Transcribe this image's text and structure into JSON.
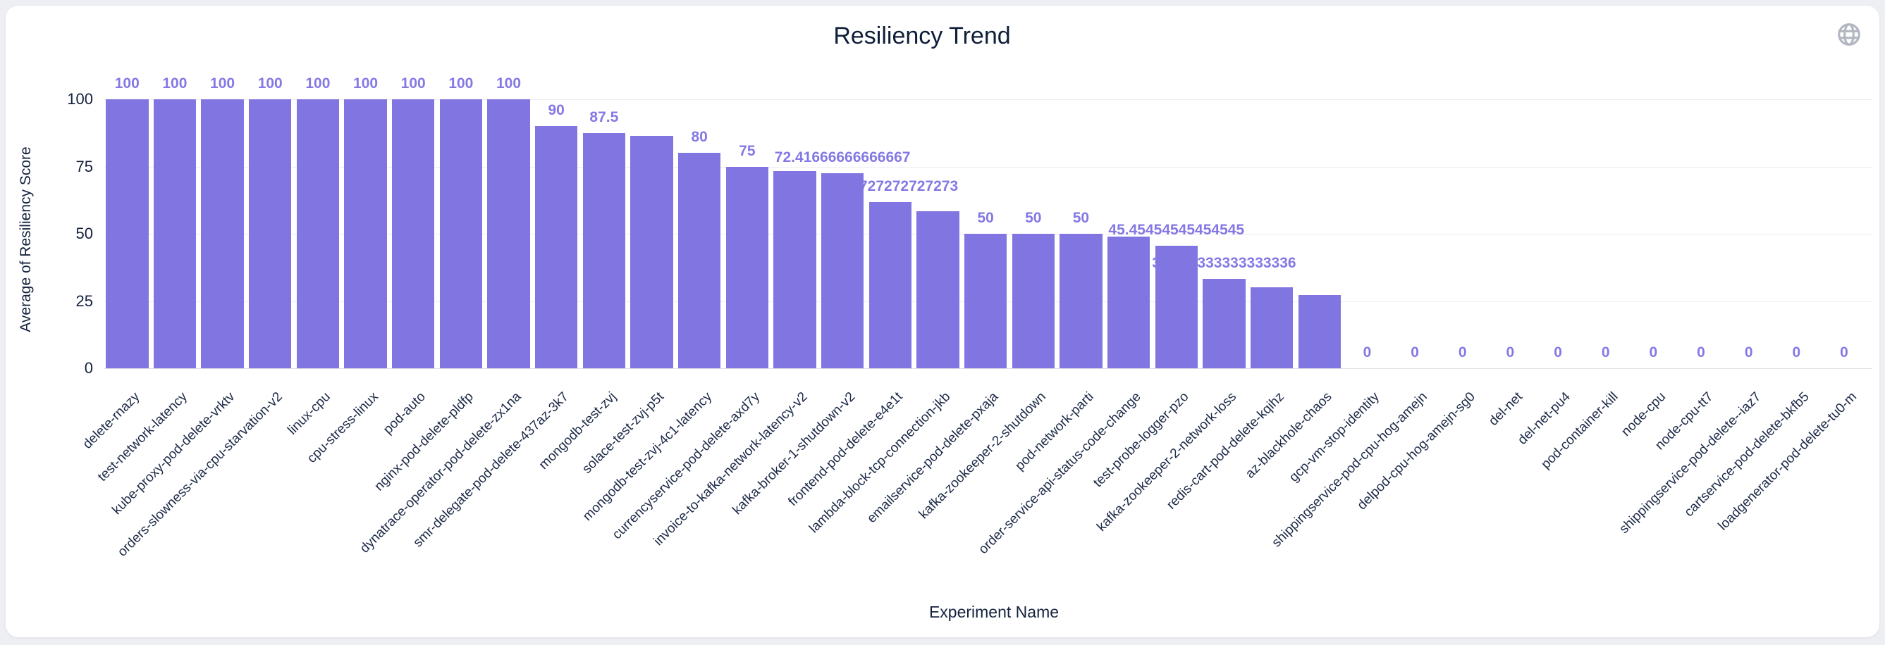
{
  "page": {
    "background": "#edeff3",
    "card_background": "#ffffff"
  },
  "header": {
    "title": "Resiliency Trend"
  },
  "icons": {
    "globe_color": "#b2b7c2"
  },
  "chart_data": {
    "type": "bar",
    "title": "Resiliency Trend",
    "xlabel": "Experiment Name",
    "ylabel": "Average of Resiliency Score",
    "ylim": [
      0,
      100
    ],
    "ytick_values": [
      0,
      25,
      50,
      75,
      100
    ],
    "ytick_labels": [
      "0",
      "25",
      "50",
      "75",
      "100"
    ],
    "grid": true,
    "legend": "none",
    "bar_color": "#8176E1",
    "value_label_color": "#8479E4",
    "categories": [
      "delete-rnazy",
      "test-network-latency",
      "kube-proxy-pod-delete-vrktv",
      "orders-slowness-via-cpu-starvation-v2",
      "linux-cpu",
      "cpu-stress-linux",
      "pod-auto",
      "nginx-pod-delete-pldfp",
      "dynatrace-operator-pod-delete-zx1na",
      "smr-delegate-pod-delete-437az-3k7",
      "mongodb-test-zvj",
      "solace-test-zvj-p5t",
      "mongodb-test-zvj-4c1-latency",
      "currencyservice-pod-delete-axd7y",
      "invoice-to-kafka-network-latency-v2",
      "kafka-broker-1-shutdown-v2",
      "frontend-pod-delete-e4e1t",
      "lambda-block-tcp-connection-jkb",
      "emailservice-pod-delete-pxaja",
      "kafka-zookeeper-2-shutdown",
      "pod-network-parti",
      "order-service-api-status-code-change",
      "test-probe-logger-pzo",
      "kafka-zookeeper-2-network-loss",
      "redis-cart-pod-delete-kqihz",
      "az-blackhole-chaos",
      "gcp-vm-stop-identity",
      "shippingservice-pod-cpu-hog-amejn",
      "delpod-cpu-hog-amejn-sg0",
      "del-net",
      "del-net-pu4",
      "pod-container-kill",
      "node-cpu",
      "node-cpu-tt7",
      "shippingservice-pod-delete--iaz7",
      "cartservice-pod-delete-bkfb5",
      "loadgenerator-pod-delete-tu0-m"
    ],
    "values": [
      100,
      100,
      100,
      100,
      100,
      100,
      100,
      100,
      100,
      90,
      87.5,
      86.4,
      80,
      75,
      73.2,
      72.41666666666667,
      61.72727272727273,
      58.3,
      50,
      50,
      50,
      49,
      45.45454545454545,
      33.333333333333336,
      30,
      27.3,
      0,
      0,
      0,
      0,
      0,
      0,
      0,
      0,
      0,
      0,
      0
    ],
    "value_labels": [
      "100",
      "100",
      "100",
      "100",
      "100",
      "100",
      "100",
      "100",
      "100",
      "90",
      "87.5",
      null,
      "80",
      "75",
      null,
      "72.41666666666667",
      "61.72727272727273",
      null,
      "50",
      "50",
      "50",
      null,
      "45.45454545454545",
      "33.333333333333336",
      null,
      null,
      "0",
      "0",
      "0",
      "0",
      "0",
      "0",
      "0",
      "0",
      "0",
      "0",
      "0"
    ]
  }
}
